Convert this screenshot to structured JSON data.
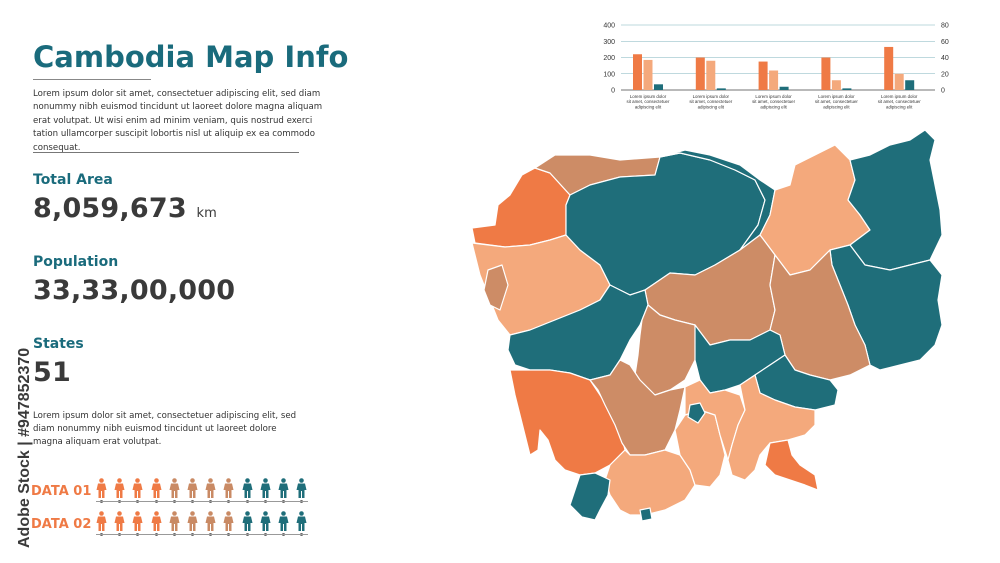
{
  "header": {
    "title": "Cambodia Map Info",
    "intro": "Lorem ipsum dolor sit amet, consectetuer adipiscing elit, sed diam nonummy nibh euismod tincidunt ut laoreet dolore magna aliquam erat volutpat. Ut wisi enim ad minim veniam, quis nostrud exerci tation ullamcorper suscipit lobortis nisl ut aliquip ex ea commodo consequat."
  },
  "stats": {
    "area_label": "Total Area",
    "area_value": "8,059,673",
    "area_unit": "km",
    "population_label": "Population",
    "population_value": "33,33,00,000",
    "states_label": "States",
    "states_value": "51"
  },
  "description": "Lorem ipsum dolor sit amet, consectetuer adipiscing elit, sed diam nonummy nibh euismod tincidunt ut laoreet dolore magna aliquam erat volutpat.",
  "people_rows": [
    {
      "label": "DATA 01",
      "colors": [
        "#ef7a45",
        "#ef7a45",
        "#ef7a45",
        "#ef7a45",
        "#c98a64",
        "#c98a64",
        "#c98a64",
        "#c98a64",
        "#1f6e7a",
        "#1f6e7a",
        "#1f6e7a",
        "#1f6e7a"
      ]
    },
    {
      "label": "DATA 02",
      "colors": [
        "#ef7a45",
        "#ef7a45",
        "#ef7a45",
        "#ef7a45",
        "#c98a64",
        "#c98a64",
        "#c98a64",
        "#c98a64",
        "#1f6e7a",
        "#1f6e7a",
        "#1f6e7a",
        "#1f6e7a"
      ]
    }
  ],
  "watermark": "Adobe Stock | #947852370",
  "colors": {
    "teal": "#1f6e7a",
    "orange": "#ef7a45",
    "peach": "#f4a97c",
    "tan": "#cd8c66",
    "title": "#1a6b7c"
  },
  "chart_data": {
    "type": "bar",
    "categories": [
      "Lorem ipsum dolor sit amet, consectetuer adipiscing elit",
      "Lorem ipsum dolor sit amet, consectetuer adipiscing elit",
      "Lorem ipsum dolor sit amet, consectetuer adipiscing elit",
      "Lorem ipsum dolor sit amet, consectetuer adipiscing elit",
      "Lorem ipsum dolor sit amet, consectetuer adipiscing elit"
    ],
    "series": [
      {
        "values": [
          220,
          200,
          175,
          200,
          265
        ],
        "color": "#ef7a45",
        "axis": "left"
      },
      {
        "values": [
          185,
          180,
          120,
          60,
          100
        ],
        "color": "#f4a97c",
        "axis": "left"
      },
      {
        "values": [
          35,
          10,
          20,
          10,
          60
        ],
        "color": "#1f6e7a",
        "axis": "left"
      }
    ],
    "left_ticks": [
      "0",
      "100",
      "200",
      "300",
      "400"
    ],
    "right_ticks": [
      "0",
      "20",
      "40",
      "60",
      "80"
    ],
    "ylim": [
      0,
      400
    ],
    "y2lim": [
      0,
      80
    ],
    "grid": true
  }
}
